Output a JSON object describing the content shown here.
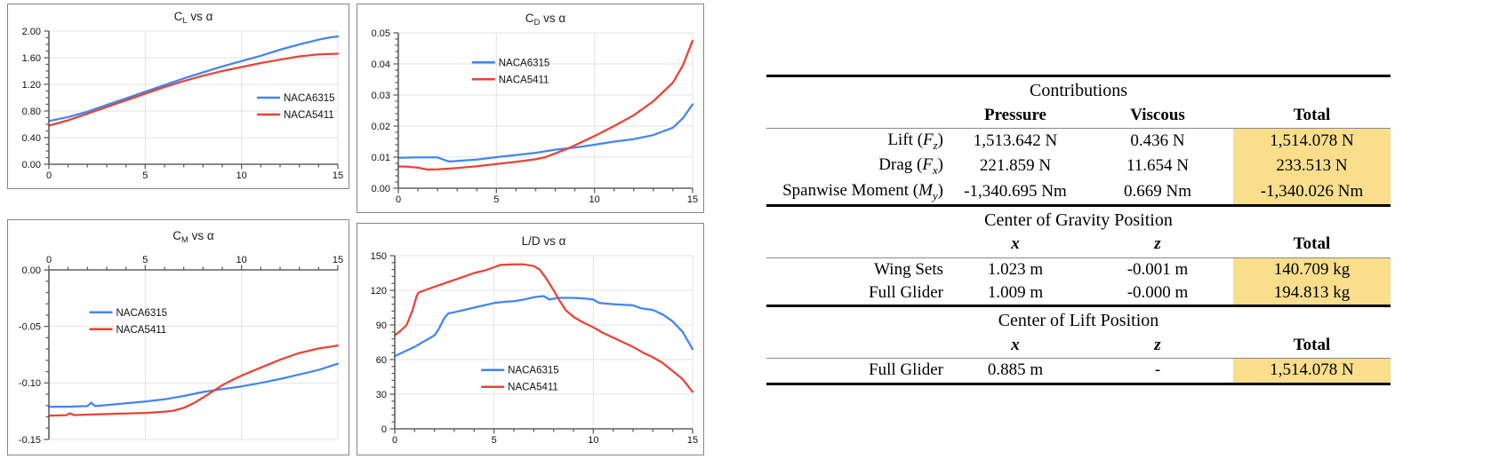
{
  "chart_data": [
    {
      "id": "cl",
      "type": "line",
      "title": {
        "pre": "C",
        "sub": "L",
        "post": " vs α"
      },
      "xlim": [
        0,
        15
      ],
      "ylim": [
        0,
        2
      ],
      "xticks": [
        0,
        5,
        10,
        15
      ],
      "yticks": [
        0,
        0.4,
        0.8,
        1.2,
        1.6,
        2
      ],
      "y_decimals": 2,
      "x_axis": "bottom",
      "grid": true,
      "legend_position": {
        "x": 0.72,
        "y": 0.5
      },
      "series": [
        {
          "name": "NACA6315",
          "color": "#4285F4",
          "points": [
            [
              0,
              0.65
            ],
            [
              1,
              0.71
            ],
            [
              2,
              0.79
            ],
            [
              3,
              0.89
            ],
            [
              4,
              0.99
            ],
            [
              5,
              1.09
            ],
            [
              6,
              1.19
            ],
            [
              7,
              1.29
            ],
            [
              8,
              1.38
            ],
            [
              9,
              1.47
            ],
            [
              10,
              1.55
            ],
            [
              11,
              1.63
            ],
            [
              12,
              1.72
            ],
            [
              13,
              1.8
            ],
            [
              14,
              1.87
            ],
            [
              14.5,
              1.9
            ],
            [
              15,
              1.92
            ]
          ]
        },
        {
          "name": "NACA5411",
          "color": "#EA4335",
          "points": [
            [
              0,
              0.58
            ],
            [
              1,
              0.66
            ],
            [
              2,
              0.76
            ],
            [
              3,
              0.86
            ],
            [
              4,
              0.96
            ],
            [
              5,
              1.06
            ],
            [
              6,
              1.16
            ],
            [
              7,
              1.25
            ],
            [
              8,
              1.33
            ],
            [
              9,
              1.4
            ],
            [
              10,
              1.46
            ],
            [
              11,
              1.52
            ],
            [
              12,
              1.57
            ],
            [
              13,
              1.62
            ],
            [
              14,
              1.65
            ],
            [
              15,
              1.66
            ]
          ]
        }
      ]
    },
    {
      "id": "cd",
      "type": "line",
      "title": {
        "pre": "C",
        "sub": "D",
        "post": " vs α"
      },
      "xlim": [
        0,
        15
      ],
      "ylim": [
        0,
        0.05
      ],
      "xticks": [
        0,
        5,
        10,
        15
      ],
      "yticks": [
        0,
        0.01,
        0.02,
        0.03,
        0.04,
        0.05
      ],
      "y_decimals": 2,
      "x_axis": "bottom",
      "grid": true,
      "legend_position": {
        "x": 0.25,
        "y": 0.19
      },
      "series": [
        {
          "name": "NACA6315",
          "color": "#4285F4",
          "points": [
            [
              0,
              0.0098
            ],
            [
              1,
              0.0099
            ],
            [
              2,
              0.0099
            ],
            [
              2.3,
              0.0092
            ],
            [
              2.6,
              0.0086
            ],
            [
              3,
              0.0088
            ],
            [
              4,
              0.0092
            ],
            [
              5,
              0.01
            ],
            [
              6,
              0.0107
            ],
            [
              7,
              0.0114
            ],
            [
              8,
              0.0124
            ],
            [
              9,
              0.0131
            ],
            [
              10,
              0.014
            ],
            [
              11,
              0.015
            ],
            [
              12,
              0.0158
            ],
            [
              13,
              0.0171
            ],
            [
              14,
              0.0195
            ],
            [
              14.5,
              0.0225
            ],
            [
              15,
              0.027
            ]
          ]
        },
        {
          "name": "NACA5411",
          "color": "#EA4335",
          "points": [
            [
              0,
              0.007
            ],
            [
              0.5,
              0.0069
            ],
            [
              1,
              0.0066
            ],
            [
              1.5,
              0.006
            ],
            [
              2,
              0.0061
            ],
            [
              3,
              0.0065
            ],
            [
              4,
              0.0071
            ],
            [
              5,
              0.0078
            ],
            [
              6,
              0.0085
            ],
            [
              7,
              0.0093
            ],
            [
              7.5,
              0.01
            ],
            [
              8,
              0.0112
            ],
            [
              8.5,
              0.0124
            ],
            [
              9,
              0.0138
            ],
            [
              10,
              0.0168
            ],
            [
              11,
              0.02
            ],
            [
              12,
              0.0235
            ],
            [
              13,
              0.028
            ],
            [
              14,
              0.034
            ],
            [
              14.5,
              0.0395
            ],
            [
              15,
              0.0475
            ]
          ]
        }
      ]
    },
    {
      "id": "cm",
      "type": "line",
      "title": {
        "pre": "C",
        "sub": "M",
        "post": " vs α"
      },
      "xlim": [
        0,
        15
      ],
      "ylim": [
        -0.15,
        0
      ],
      "xticks": [
        0,
        5,
        10,
        15
      ],
      "yticks": [
        0,
        -0.05,
        -0.1,
        -0.15
      ],
      "y_decimals": 2,
      "x_axis": "top",
      "grid": true,
      "legend_position": {
        "x": 0.14,
        "y": 0.25
      },
      "series": [
        {
          "name": "NACA6315",
          "color": "#4285F4",
          "points": [
            [
              0,
              -0.121
            ],
            [
              1,
              -0.121
            ],
            [
              2,
              -0.1205
            ],
            [
              2.2,
              -0.1175
            ],
            [
              2.4,
              -0.1205
            ],
            [
              3,
              -0.1195
            ],
            [
              4,
              -0.118
            ],
            [
              5,
              -0.1165
            ],
            [
              6,
              -0.1145
            ],
            [
              7,
              -0.1115
            ],
            [
              8,
              -0.108
            ],
            [
              9,
              -0.1055
            ],
            [
              10,
              -0.103
            ],
            [
              11,
              -0.1
            ],
            [
              12,
              -0.0965
            ],
            [
              13,
              -0.0925
            ],
            [
              14,
              -0.0885
            ],
            [
              15,
              -0.083
            ]
          ]
        },
        {
          "name": "NACA5411",
          "color": "#EA4335",
          "points": [
            [
              0,
              -0.129
            ],
            [
              0.9,
              -0.1285
            ],
            [
              1.1,
              -0.1268
            ],
            [
              1.3,
              -0.1285
            ],
            [
              2,
              -0.128
            ],
            [
              3,
              -0.1275
            ],
            [
              4,
              -0.127
            ],
            [
              5,
              -0.1265
            ],
            [
              6,
              -0.1255
            ],
            [
              6.5,
              -0.1245
            ],
            [
              7,
              -0.122
            ],
            [
              7.5,
              -0.118
            ],
            [
              8,
              -0.113
            ],
            [
              8.5,
              -0.1075
            ],
            [
              9,
              -0.102
            ],
            [
              9.5,
              -0.0975
            ],
            [
              10,
              -0.0935
            ],
            [
              11,
              -0.0865
            ],
            [
              12,
              -0.0795
            ],
            [
              13,
              -0.0735
            ],
            [
              14,
              -0.0695
            ],
            [
              15,
              -0.067
            ]
          ]
        }
      ]
    },
    {
      "id": "ld",
      "type": "line",
      "title": {
        "pre": "L/D",
        "sub": "",
        "post": " vs α"
      },
      "xlim": [
        0,
        15
      ],
      "ylim": [
        0,
        150
      ],
      "xticks": [
        0,
        5,
        10,
        15
      ],
      "yticks": [
        0,
        30,
        60,
        90,
        120,
        150
      ],
      "y_decimals": 0,
      "x_axis": "bottom",
      "grid": true,
      "legend_position": {
        "x": 0.29,
        "y": 0.66
      },
      "series": [
        {
          "name": "NACA6315",
          "color": "#4285F4",
          "points": [
            [
              0,
              63
            ],
            [
              0.5,
              67
            ],
            [
              1,
              71
            ],
            [
              1.5,
              76
            ],
            [
              2,
              81
            ],
            [
              2.2,
              86
            ],
            [
              2.5,
              96
            ],
            [
              2.7,
              100
            ],
            [
              3,
              101
            ],
            [
              4,
              105
            ],
            [
              5,
              109
            ],
            [
              5.5,
              110
            ],
            [
              6,
              110.5
            ],
            [
              6.5,
              112
            ],
            [
              7,
              114
            ],
            [
              7.5,
              115
            ],
            [
              7.8,
              112
            ],
            [
              8.2,
              113.5
            ],
            [
              9,
              113.5
            ],
            [
              9.5,
              113
            ],
            [
              10,
              112
            ],
            [
              10.3,
              109
            ],
            [
              11,
              108
            ],
            [
              12,
              107
            ],
            [
              12.4,
              104.5
            ],
            [
              13,
              103
            ],
            [
              13.5,
              99
            ],
            [
              14,
              93
            ],
            [
              14.5,
              84
            ],
            [
              15,
              69
            ]
          ]
        },
        {
          "name": "NACA5411",
          "color": "#EA4335",
          "points": [
            [
              0,
              81
            ],
            [
              0.3,
              85
            ],
            [
              0.6,
              90
            ],
            [
              0.9,
              103
            ],
            [
              1.1,
              115
            ],
            [
              1.2,
              118
            ],
            [
              1.5,
              120
            ],
            [
              2,
              123
            ],
            [
              2.5,
              126
            ],
            [
              3,
              129
            ],
            [
              3.5,
              132
            ],
            [
              4,
              135
            ],
            [
              4.5,
              137
            ],
            [
              5,
              140
            ],
            [
              5.3,
              142
            ],
            [
              6,
              142.5
            ],
            [
              6.5,
              142.5
            ],
            [
              7,
              141
            ],
            [
              7.3,
              138
            ],
            [
              7.6,
              131
            ],
            [
              8,
              120
            ],
            [
              8.3,
              111
            ],
            [
              8.6,
              103
            ],
            [
              9,
              97
            ],
            [
              9.5,
              92
            ],
            [
              10,
              88
            ],
            [
              10.5,
              83
            ],
            [
              11,
              79
            ],
            [
              11.5,
              75
            ],
            [
              12,
              71
            ],
            [
              12.5,
              66
            ],
            [
              13,
              62
            ],
            [
              13.5,
              57
            ],
            [
              14,
              50
            ],
            [
              14.5,
              43
            ],
            [
              15,
              32
            ]
          ]
        }
      ]
    }
  ],
  "table": {
    "highlight_color": "#FADE8C",
    "sections": [
      {
        "heading": "Contributions",
        "columns": {
          "c1": "Pressure",
          "c2": "Viscous",
          "c3": "Total"
        },
        "rows": [
          {
            "label_pre": "Lift (",
            "label_sym": "F",
            "label_sub": "z",
            "label_post": ")",
            "c1": "1,513.642 N",
            "c2": "0.436 N",
            "total": "1,514.078 N"
          },
          {
            "label_pre": "Drag (",
            "label_sym": "F",
            "label_sub": "x",
            "label_post": ")",
            "c1": "221.859 N",
            "c2": "11.654 N",
            "total": "233.513 N"
          },
          {
            "label_pre": "Spanwise Moment (",
            "label_sym": "M",
            "label_sub": "y",
            "label_post": ")",
            "c1": "-1,340.695 Nm",
            "c2": "0.669 Nm",
            "total": "-1,340.026 Nm"
          }
        ]
      },
      {
        "heading": "Center of Gravity Position",
        "columns": {
          "c1": "x",
          "c2": "z",
          "c3": "Total"
        },
        "rows": [
          {
            "label_pre": "Wing Sets",
            "label_sym": "",
            "label_sub": "",
            "label_post": "",
            "c1": "1.023 m",
            "c2": "-0.001 m",
            "total": "140.709 kg"
          },
          {
            "label_pre": "Full Glider",
            "label_sym": "",
            "label_sub": "",
            "label_post": "",
            "c1": "1.009 m",
            "c2": "-0.000 m",
            "total": "194.813 kg"
          }
        ]
      },
      {
        "heading": "Center of Lift Position",
        "columns": {
          "c1": "x",
          "c2": "z",
          "c3": "Total"
        },
        "rows": [
          {
            "label_pre": "Full Glider",
            "label_sym": "",
            "label_sub": "",
            "label_post": "",
            "c1": "0.885 m",
            "c2": "-",
            "total": "1,514.078 N"
          }
        ]
      }
    ]
  }
}
